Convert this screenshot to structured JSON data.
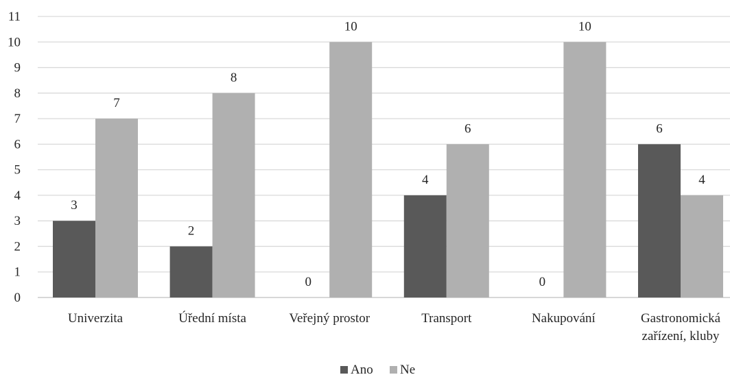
{
  "chart_data": {
    "type": "bar",
    "title": "",
    "xlabel": "",
    "ylabel": "",
    "ylim": [
      0,
      11
    ],
    "yticks": [
      "0",
      "1",
      "2",
      "3",
      "4",
      "5",
      "6",
      "7",
      "8",
      "9",
      "10",
      "11"
    ],
    "categories": [
      [
        "Univerzita"
      ],
      [
        "Úřední místa"
      ],
      [
        "Veřejný prostor"
      ],
      [
        "Transport"
      ],
      [
        "Nakupování"
      ],
      [
        "Gastronomická",
        "zařízení, kluby"
      ]
    ],
    "series": [
      {
        "name": "Ano",
        "values": [
          3,
          2,
          0,
          4,
          0,
          6
        ],
        "color": "#595959"
      },
      {
        "name": "Ne",
        "values": [
          7,
          8,
          10,
          6,
          10,
          4
        ],
        "color": "#b0b0b0"
      }
    ],
    "data_labels": true,
    "grid": "horizontal",
    "legend": "bottom-center"
  }
}
